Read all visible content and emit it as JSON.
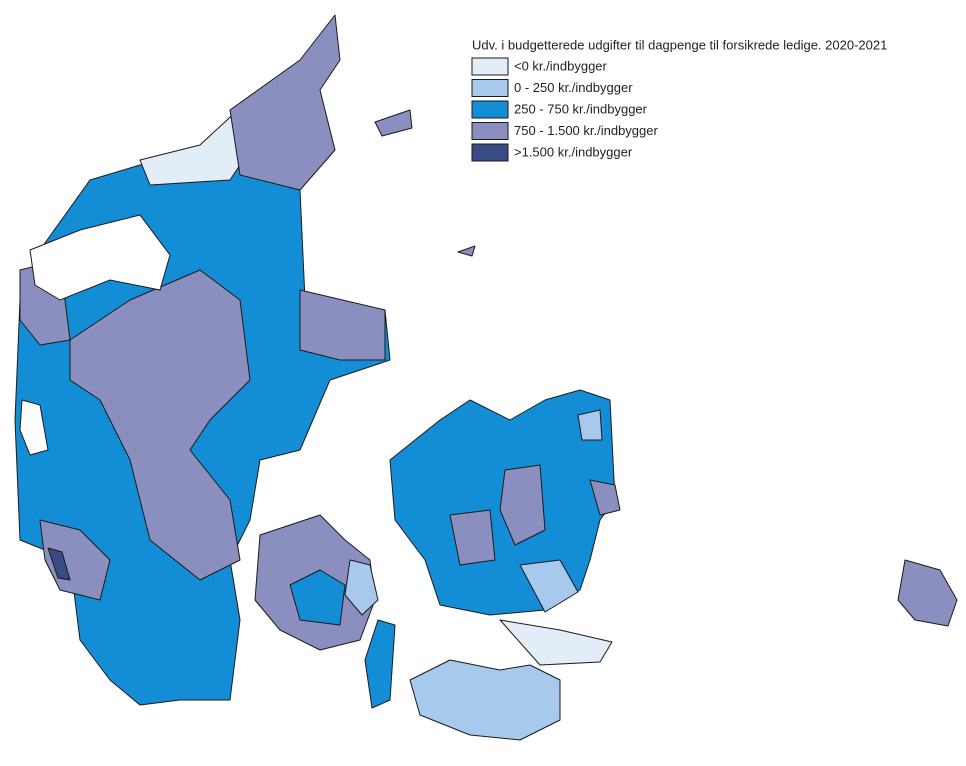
{
  "legend": {
    "title": "Udv. i budgetterede udgifter til dagpenge til forsikrede ledige. 2020-2021",
    "items": [
      {
        "label": "<0 kr./indbygger",
        "color": "#e3edf8"
      },
      {
        "label": "0 - 250 kr./indbygger",
        "color": "#a6c9ec"
      },
      {
        "label": "250 - 750 kr./indbygger",
        "color": "#138ed6"
      },
      {
        "label": "750 - 1.500 kr./indbygger",
        "color": "#8a8fbf"
      },
      {
        "label": ">1.500 kr./indbygger",
        "color": "#3a4a85"
      }
    ]
  }
}
